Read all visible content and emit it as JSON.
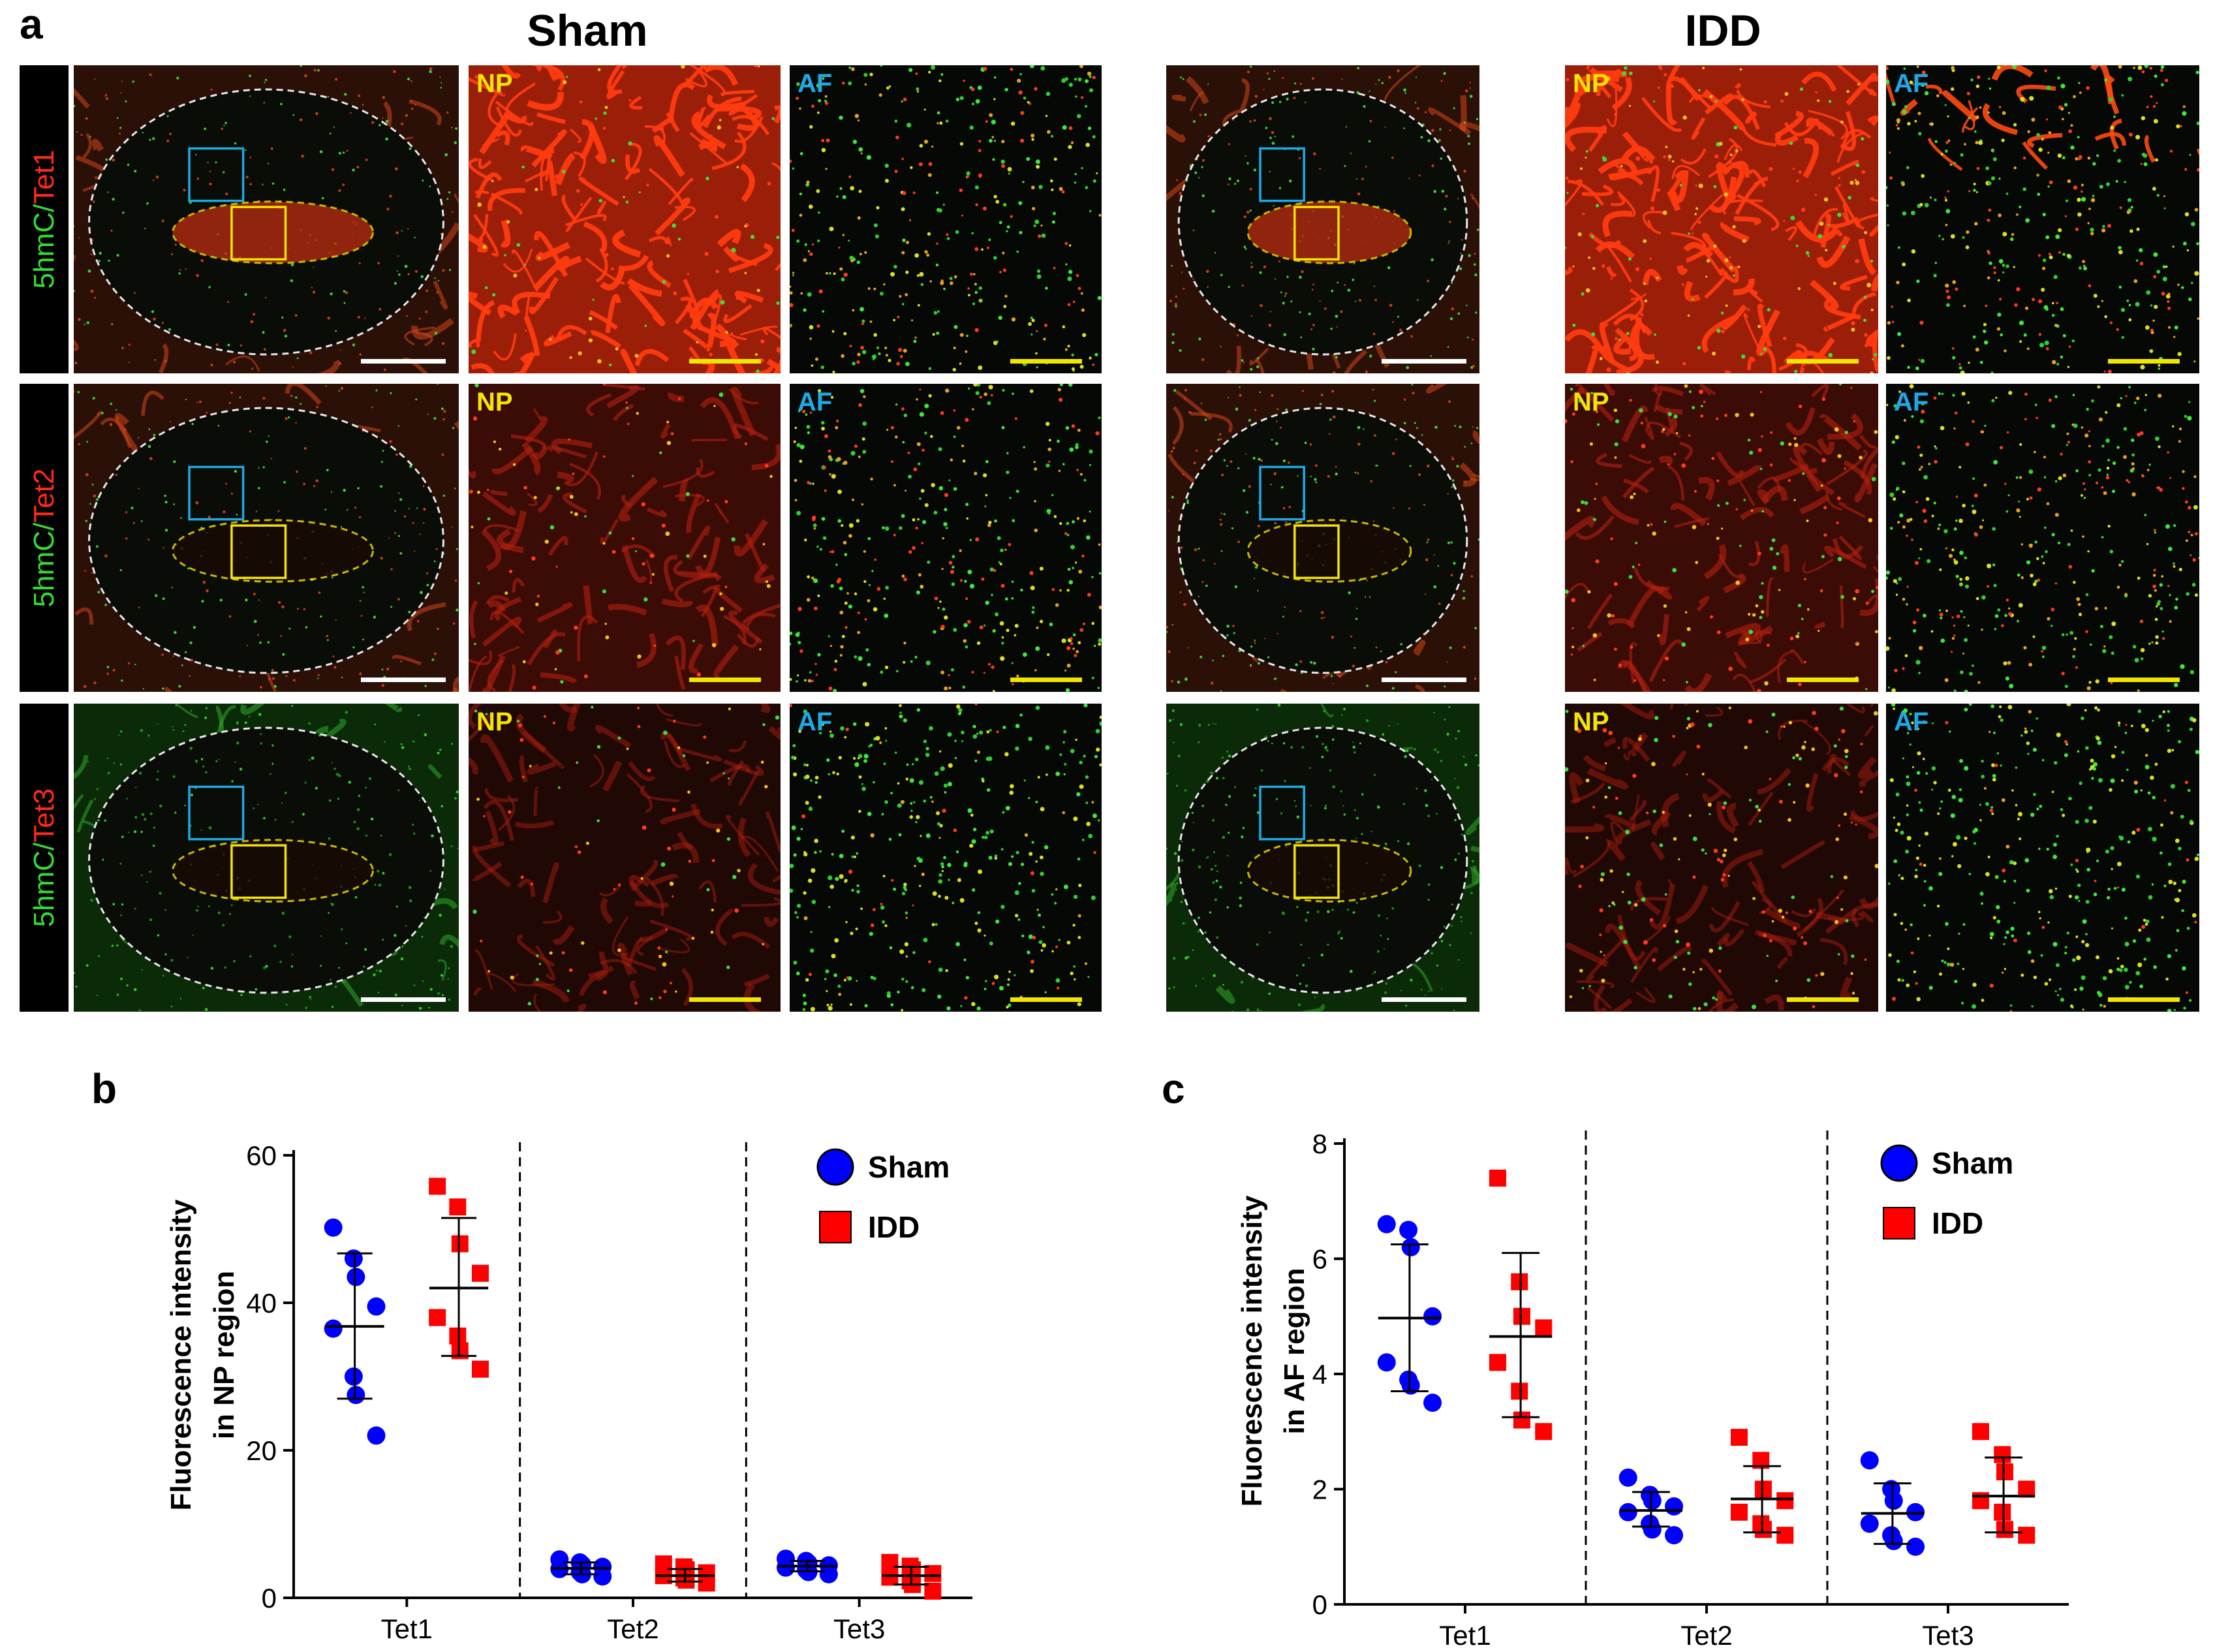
{
  "panel_a": {
    "letter": "a",
    "groups": [
      {
        "title": "Sham",
        "rows": [
          {
            "label_prefix": "5hmC/",
            "label_suffix": "Tet1",
            "np_tag": "NP",
            "af_tag": "AF"
          },
          {
            "label_prefix": "5hmC/",
            "label_suffix": "Tet2",
            "np_tag": "NP",
            "af_tag": "AF"
          },
          {
            "label_prefix": "5hmC/",
            "label_suffix": "Tet3",
            "np_tag": "NP",
            "af_tag": "AF"
          }
        ]
      },
      {
        "title": "IDD",
        "rows": [
          {
            "np_tag": "NP",
            "af_tag": "AF"
          },
          {
            "np_tag": "NP",
            "af_tag": "AF"
          },
          {
            "np_tag": "NP",
            "af_tag": "AF"
          }
        ]
      }
    ],
    "colors": {
      "green": "#33dd33",
      "red": "#ff2a1a",
      "np_yellow": "#f4e500",
      "af_blue": "#1fa8e6",
      "scale_white": "#ffffff",
      "scale_yellow": "#f0e600"
    }
  },
  "chart_data": [
    {
      "panel": "b",
      "type": "scatter",
      "categories": [
        "Tet1",
        "Tet2",
        "Tet3"
      ],
      "ylabel_line1": "Fluorescence intensity",
      "ylabel_line2": "in NP region",
      "ylim": [
        0,
        60
      ],
      "yticks": [
        "0",
        "20",
        "40",
        "60"
      ],
      "legend": [
        {
          "name": "Sham",
          "color": "#0000ff",
          "marker": "circle"
        },
        {
          "name": "IDD",
          "color": "#ff0000",
          "marker": "square"
        }
      ],
      "series": [
        {
          "name": "Sham",
          "color": "#0000ff",
          "marker": "circle",
          "groups": [
            {
              "points": [
                50.2,
                46.0,
                43.5,
                39.5,
                36.5,
                30.0,
                27.5,
                22.0
              ],
              "mean": 36.8,
              "sd_low": 27.0,
              "sd_high": 46.7
            },
            {
              "points": [
                5.2,
                4.8,
                4.5,
                4.2,
                3.9,
                3.5,
                3.2,
                2.9
              ],
              "mean": 4.0,
              "sd_low": 3.2,
              "sd_high": 4.8
            },
            {
              "points": [
                5.3,
                5.0,
                4.7,
                4.4,
                4.1,
                3.8,
                3.5,
                3.2
              ],
              "mean": 4.3,
              "sd_low": 3.6,
              "sd_high": 5.0
            }
          ]
        },
        {
          "name": "IDD",
          "color": "#ff0000",
          "marker": "square",
          "groups": [
            {
              "points": [
                55.8,
                53.0,
                48.0,
                44.0,
                38.0,
                35.5,
                33.5,
                31.0
              ],
              "mean": 42.0,
              "sd_low": 32.8,
              "sd_high": 51.5
            },
            {
              "points": [
                4.6,
                4.2,
                3.8,
                3.4,
                3.0,
                2.7,
                2.4,
                2.0
              ],
              "mean": 3.0,
              "sd_low": 2.2,
              "sd_high": 3.9
            },
            {
              "points": [
                4.8,
                4.3,
                3.8,
                3.3,
                2.8,
                2.3,
                1.8,
                0.9
              ],
              "mean": 3.0,
              "sd_low": 1.8,
              "sd_high": 4.2
            }
          ]
        }
      ]
    },
    {
      "panel": "c",
      "type": "scatter",
      "categories": [
        "Tet1",
        "Tet2",
        "Tet3"
      ],
      "ylabel_line1": "Fluorescence intensity",
      "ylabel_line2": "in AF region",
      "ylim": [
        0,
        8
      ],
      "yticks": [
        "0",
        "2",
        "4",
        "6",
        "8"
      ],
      "legend": [
        {
          "name": "Sham",
          "color": "#0000ff",
          "marker": "circle"
        },
        {
          "name": "IDD",
          "color": "#ff0000",
          "marker": "square"
        }
      ],
      "series": [
        {
          "name": "Sham",
          "color": "#0000ff",
          "marker": "circle",
          "groups": [
            {
              "points": [
                6.6,
                6.5,
                6.2,
                5.0,
                4.2,
                3.9,
                3.8,
                3.5
              ],
              "mean": 4.97,
              "sd_low": 3.7,
              "sd_high": 6.25
            },
            {
              "points": [
                2.2,
                1.9,
                1.8,
                1.7,
                1.6,
                1.4,
                1.3,
                1.2
              ],
              "mean": 1.63,
              "sd_low": 1.35,
              "sd_high": 1.95
            },
            {
              "points": [
                2.5,
                2.0,
                1.8,
                1.6,
                1.4,
                1.2,
                1.1,
                1.0
              ],
              "mean": 1.58,
              "sd_low": 1.05,
              "sd_high": 2.1
            }
          ]
        },
        {
          "name": "IDD",
          "color": "#ff0000",
          "marker": "square",
          "groups": [
            {
              "points": [
                7.4,
                5.6,
                5.0,
                4.8,
                4.2,
                3.7,
                3.2,
                3.0
              ],
              "mean": 4.65,
              "sd_low": 3.25,
              "sd_high": 6.1
            },
            {
              "points": [
                2.9,
                2.5,
                2.0,
                1.8,
                1.6,
                1.4,
                1.3,
                1.2
              ],
              "mean": 1.83,
              "sd_low": 1.25,
              "sd_high": 2.4
            },
            {
              "points": [
                3.0,
                2.6,
                2.3,
                2.0,
                1.8,
                1.6,
                1.3,
                1.2
              ],
              "mean": 1.88,
              "sd_low": 1.25,
              "sd_high": 2.55
            }
          ]
        }
      ]
    }
  ]
}
